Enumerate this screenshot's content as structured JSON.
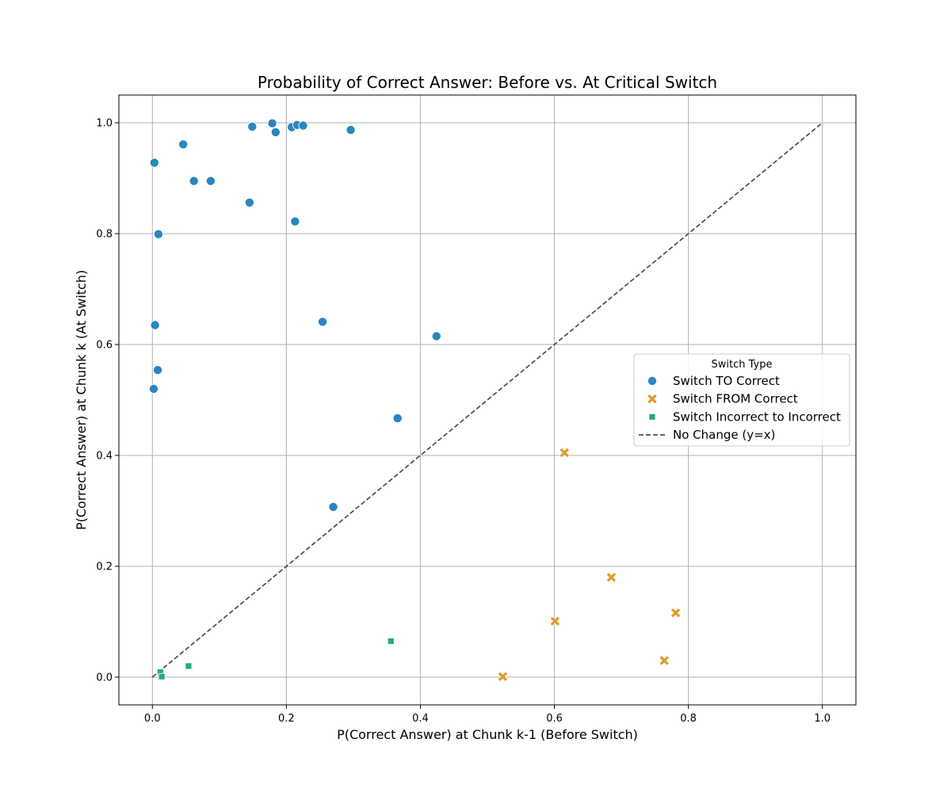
{
  "chart_data": {
    "type": "scatter",
    "title": "Probability of Correct Answer: Before vs. At Critical Switch",
    "xlabel": "P(Correct Answer) at Chunk k-1 (Before Switch)",
    "ylabel": "P(Correct Answer) at Chunk k (At Switch)",
    "xlim": [
      -0.05,
      1.05
    ],
    "ylim": [
      -0.05,
      1.05
    ],
    "xticks": [
      0.0,
      0.2,
      0.4,
      0.6,
      0.8,
      1.0
    ],
    "xtick_labels": [
      "0.0",
      "0.2",
      "0.4",
      "0.6",
      "0.8",
      "1.0"
    ],
    "yticks": [
      0.0,
      0.2,
      0.4,
      0.6,
      0.8,
      1.0
    ],
    "ytick_labels": [
      "0.0",
      "0.2",
      "0.4",
      "0.6",
      "0.8",
      "1.0"
    ],
    "grid": true,
    "legend": {
      "title": "Switch Type",
      "placement": "center-right"
    },
    "series": [
      {
        "name": "Switch TO Correct",
        "marker": "circle",
        "color": "#2986bf",
        "points": [
          [
            0.003,
            0.928
          ],
          [
            0.046,
            0.961
          ],
          [
            0.062,
            0.895
          ],
          [
            0.087,
            0.895
          ],
          [
            0.145,
            0.856
          ],
          [
            0.149,
            0.993
          ],
          [
            0.179,
            0.999
          ],
          [
            0.184,
            0.983
          ],
          [
            0.208,
            0.992
          ],
          [
            0.216,
            0.996
          ],
          [
            0.225,
            0.995
          ],
          [
            0.296,
            0.987
          ],
          [
            0.213,
            0.822
          ],
          [
            0.009,
            0.799
          ],
          [
            0.004,
            0.635
          ],
          [
            0.254,
            0.641
          ],
          [
            0.424,
            0.615
          ],
          [
            0.008,
            0.554
          ],
          [
            0.002,
            0.52
          ],
          [
            0.366,
            0.467
          ],
          [
            0.27,
            0.307
          ]
        ]
      },
      {
        "name": "Switch FROM Correct",
        "marker": "x",
        "color": "#e09a2a",
        "points": [
          [
            0.615,
            0.405
          ],
          [
            0.685,
            0.18
          ],
          [
            0.601,
            0.101
          ],
          [
            0.781,
            0.116
          ],
          [
            0.764,
            0.03
          ],
          [
            0.523,
            0.001
          ]
        ]
      },
      {
        "name": "Switch Incorrect to Incorrect",
        "marker": "square",
        "color": "#26a884",
        "points": [
          [
            0.356,
            0.065
          ],
          [
            0.054,
            0.02
          ],
          [
            0.012,
            0.009
          ],
          [
            0.014,
            0.001
          ]
        ]
      }
    ],
    "reference_line": {
      "name": "No Change (y=x)",
      "from": [
        0,
        0
      ],
      "to": [
        1,
        1
      ],
      "style": "dashed",
      "color": "#444444"
    }
  }
}
